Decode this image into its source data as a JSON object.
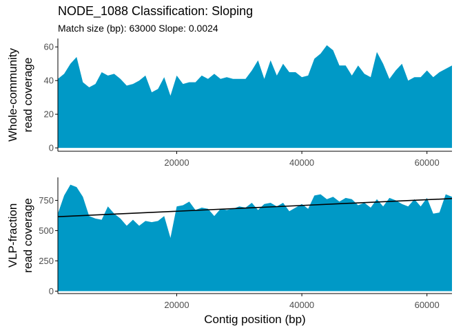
{
  "title": "NODE_1088 Classification: Sloping",
  "subtitle": "Match size (bp): 63000 Slope: 0.0024",
  "colors": {
    "fill": "#0099C6",
    "line": "#000000",
    "axis": "#000000",
    "tick_text": "#4d4d4d"
  },
  "chart_data": [
    {
      "type": "area",
      "ylabel": [
        "Whole-community",
        "read coverage"
      ],
      "xlabel": "",
      "xlim": [
        1000,
        64000
      ],
      "ylim": [
        -2,
        65
      ],
      "y_ticks": [
        0,
        20,
        40,
        60
      ],
      "x_ticks": [
        20000,
        40000,
        60000
      ],
      "x_tick_labels": [
        "20000",
        "40000",
        "60000"
      ],
      "y_tick_labels": [
        "0",
        "20",
        "40",
        "60"
      ],
      "x": [
        1000,
        2000,
        3000,
        4000,
        5000,
        6000,
        7000,
        8000,
        9000,
        10000,
        11000,
        12000,
        13000,
        14000,
        15000,
        16000,
        17000,
        18000,
        19000,
        20000,
        21000,
        22000,
        23000,
        24000,
        25000,
        26000,
        27000,
        28000,
        29000,
        30000,
        31000,
        32000,
        33000,
        34000,
        35000,
        36000,
        37000,
        38000,
        39000,
        40000,
        41000,
        42000,
        43000,
        44000,
        45000,
        46000,
        47000,
        48000,
        49000,
        50000,
        51000,
        52000,
        53000,
        54000,
        55000,
        56000,
        57000,
        58000,
        59000,
        60000,
        61000,
        62000,
        63000,
        64000
      ],
      "values": [
        41,
        44,
        50,
        54,
        39,
        36,
        38,
        45,
        43,
        44,
        41,
        37,
        38,
        40,
        43,
        33,
        35,
        42,
        31,
        43,
        38,
        39,
        39,
        43,
        41,
        44,
        41,
        42,
        41,
        41,
        41,
        46,
        52,
        41,
        52,
        43,
        50,
        45,
        45,
        42,
        43,
        53,
        56,
        61,
        58,
        49,
        49,
        43,
        49,
        44,
        42,
        57,
        50,
        41,
        46,
        50,
        40,
        42,
        42,
        46,
        42,
        45,
        47,
        49
      ]
    },
    {
      "type": "area",
      "ylabel": [
        "VLP-fraction",
        "read coverage"
      ],
      "xlabel": "Contig position (bp)",
      "xlim": [
        1000,
        64000
      ],
      "ylim": [
        -20,
        940
      ],
      "y_ticks": [
        0,
        250,
        500,
        750
      ],
      "x_ticks": [
        20000,
        40000,
        60000
      ],
      "x_tick_labels": [
        "20000",
        "40000",
        "60000"
      ],
      "y_tick_labels": [
        "0",
        "250",
        "500",
        "750"
      ],
      "x": [
        1000,
        2000,
        3000,
        4000,
        5000,
        6000,
        7000,
        8000,
        9000,
        10000,
        11000,
        12000,
        13000,
        14000,
        15000,
        16000,
        17000,
        18000,
        19000,
        20000,
        21000,
        22000,
        23000,
        24000,
        25000,
        26000,
        27000,
        28000,
        29000,
        30000,
        31000,
        32000,
        33000,
        34000,
        35000,
        36000,
        37000,
        38000,
        39000,
        40000,
        41000,
        42000,
        43000,
        44000,
        45000,
        46000,
        47000,
        48000,
        49000,
        50000,
        51000,
        52000,
        53000,
        54000,
        55000,
        56000,
        57000,
        58000,
        59000,
        60000,
        61000,
        62000,
        63000,
        64000
      ],
      "values": [
        640,
        790,
        880,
        860,
        780,
        620,
        600,
        590,
        700,
        640,
        600,
        540,
        590,
        540,
        580,
        570,
        580,
        620,
        440,
        700,
        710,
        740,
        670,
        690,
        680,
        620,
        680,
        670,
        680,
        700,
        690,
        730,
        670,
        720,
        730,
        700,
        730,
        660,
        690,
        720,
        680,
        790,
        800,
        760,
        780,
        740,
        770,
        760,
        710,
        730,
        690,
        760,
        700,
        770,
        750,
        720,
        700,
        760,
        700,
        770,
        640,
        650,
        800,
        780
      ],
      "fit_line": {
        "x": [
          1000,
          64000
        ],
        "y": [
          615,
          765
        ]
      }
    }
  ]
}
